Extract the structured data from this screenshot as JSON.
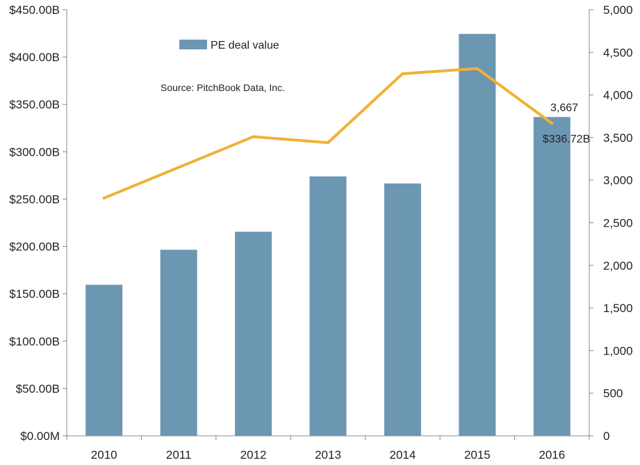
{
  "chart_data": {
    "type": "bar",
    "categories": [
      "2010",
      "2011",
      "2012",
      "2013",
      "2014",
      "2015",
      "2016"
    ],
    "series": [
      {
        "name": "PE deal value",
        "type": "bar",
        "axis": "left",
        "values": [
          159.5,
          196.5,
          215.5,
          274.0,
          266.5,
          424.5,
          336.72
        ],
        "color": "#6c97b3"
      },
      {
        "type": "line",
        "axis": "right",
        "values": [
          2790,
          3150,
          3510,
          3440,
          4250,
          4310,
          3667
        ],
        "color": "#f0b133"
      }
    ],
    "left_axis": {
      "ylim": [
        0,
        450
      ],
      "ticks": [
        0,
        50,
        100,
        150,
        200,
        250,
        300,
        350,
        400,
        450
      ],
      "tick_labels": [
        "$0.00M",
        "$50.00B",
        "$100.00B",
        "$150.00B",
        "$200.00B",
        "$250.00B",
        "$300.00B",
        "$350.00B",
        "$400.00B",
        "$450.00B"
      ]
    },
    "right_axis": {
      "ylim": [
        0,
        5000
      ],
      "ticks": [
        0,
        500,
        1000,
        1500,
        2000,
        2500,
        3000,
        3500,
        4000,
        4500,
        5000
      ],
      "tick_labels": [
        "0",
        "500",
        "1,000",
        "1,500",
        "2,000",
        "2,500",
        "3,000",
        "3,500",
        "4,000",
        "4,500",
        "5,000"
      ]
    },
    "legend": {
      "label": "PE deal value",
      "placement": "top-left"
    },
    "annotations": {
      "source": "Source: PitchBook Data, Inc.",
      "last_line_label": "3,667",
      "last_bar_label": "$336.72B"
    },
    "grid": false
  }
}
